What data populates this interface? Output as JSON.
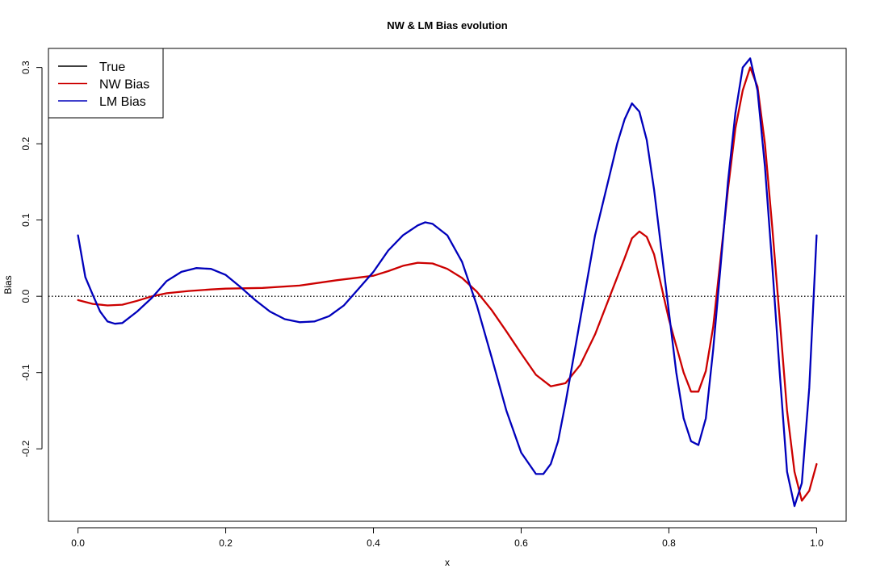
{
  "chart_data": {
    "type": "line",
    "title": "NW & LM Bias evolution",
    "xlabel": "x",
    "ylabel": "Bias",
    "xlim": [
      -0.04,
      1.04
    ],
    "ylim": [
      -0.295,
      0.325
    ],
    "x_ticks": [
      0.0,
      0.2,
      0.4,
      0.6,
      0.8,
      1.0
    ],
    "x_tick_labels": [
      "0.0",
      "0.2",
      "0.4",
      "0.6",
      "0.8",
      "1.0"
    ],
    "y_ticks": [
      -0.2,
      -0.1,
      0.0,
      0.1,
      0.2,
      0.3
    ],
    "y_tick_labels": [
      "-0.2",
      "-0.1",
      "0.0",
      "0.1",
      "0.2",
      "0.3"
    ],
    "legend_position": "top-left",
    "reference_line": {
      "y": 0.0,
      "style": "dotted",
      "color": "#000000"
    },
    "series": [
      {
        "name": "True",
        "color": "#000000",
        "x": [],
        "y": []
      },
      {
        "name": "NW Bias",
        "color": "#cc0000",
        "x": [
          0.0,
          0.02,
          0.04,
          0.06,
          0.08,
          0.1,
          0.12,
          0.15,
          0.18,
          0.2,
          0.25,
          0.3,
          0.35,
          0.4,
          0.42,
          0.44,
          0.46,
          0.48,
          0.5,
          0.52,
          0.54,
          0.56,
          0.58,
          0.6,
          0.62,
          0.64,
          0.66,
          0.68,
          0.7,
          0.72,
          0.74,
          0.75,
          0.76,
          0.77,
          0.78,
          0.8,
          0.82,
          0.83,
          0.84,
          0.85,
          0.86,
          0.87,
          0.88,
          0.89,
          0.9,
          0.91,
          0.92,
          0.93,
          0.94,
          0.95,
          0.96,
          0.97,
          0.98,
          0.99,
          1.0
        ],
        "y": [
          -0.005,
          -0.01,
          -0.012,
          -0.011,
          -0.006,
          0.0,
          0.004,
          0.007,
          0.009,
          0.01,
          0.011,
          0.014,
          0.021,
          0.027,
          0.033,
          0.04,
          0.044,
          0.043,
          0.036,
          0.024,
          0.006,
          -0.018,
          -0.046,
          -0.075,
          -0.103,
          -0.118,
          -0.114,
          -0.09,
          -0.05,
          0.0,
          0.05,
          0.076,
          0.085,
          0.078,
          0.055,
          -0.03,
          -0.1,
          -0.125,
          -0.125,
          -0.098,
          -0.04,
          0.05,
          0.14,
          0.22,
          0.27,
          0.3,
          0.275,
          0.2,
          0.09,
          -0.03,
          -0.15,
          -0.23,
          -0.268,
          -0.255,
          -0.22
        ]
      },
      {
        "name": "LM Bias",
        "color": "#0000bb",
        "x": [
          0.0,
          0.01,
          0.02,
          0.03,
          0.04,
          0.05,
          0.06,
          0.08,
          0.1,
          0.12,
          0.14,
          0.16,
          0.18,
          0.2,
          0.22,
          0.24,
          0.26,
          0.28,
          0.3,
          0.32,
          0.34,
          0.36,
          0.38,
          0.4,
          0.42,
          0.44,
          0.46,
          0.47,
          0.48,
          0.5,
          0.52,
          0.54,
          0.56,
          0.58,
          0.6,
          0.62,
          0.63,
          0.64,
          0.65,
          0.66,
          0.68,
          0.7,
          0.72,
          0.73,
          0.74,
          0.75,
          0.76,
          0.77,
          0.78,
          0.8,
          0.81,
          0.82,
          0.83,
          0.84,
          0.85,
          0.86,
          0.87,
          0.88,
          0.89,
          0.9,
          0.91,
          0.92,
          0.93,
          0.94,
          0.95,
          0.96,
          0.97,
          0.98,
          0.99,
          1.0
        ],
        "y": [
          0.08,
          0.025,
          0.002,
          -0.02,
          -0.033,
          -0.036,
          -0.035,
          -0.02,
          -0.002,
          0.02,
          0.032,
          0.037,
          0.036,
          0.028,
          0.012,
          -0.005,
          -0.02,
          -0.03,
          -0.034,
          -0.033,
          -0.026,
          -0.012,
          0.01,
          0.032,
          0.06,
          0.08,
          0.093,
          0.097,
          0.095,
          0.08,
          0.045,
          -0.012,
          -0.08,
          -0.15,
          -0.205,
          -0.233,
          -0.233,
          -0.22,
          -0.19,
          -0.14,
          -0.03,
          0.08,
          0.16,
          0.2,
          0.232,
          0.253,
          0.242,
          0.205,
          0.14,
          -0.02,
          -0.1,
          -0.16,
          -0.19,
          -0.195,
          -0.16,
          -0.07,
          0.04,
          0.15,
          0.24,
          0.3,
          0.312,
          0.27,
          0.17,
          0.04,
          -0.1,
          -0.23,
          -0.275,
          -0.245,
          -0.12,
          0.08
        ]
      }
    ]
  }
}
